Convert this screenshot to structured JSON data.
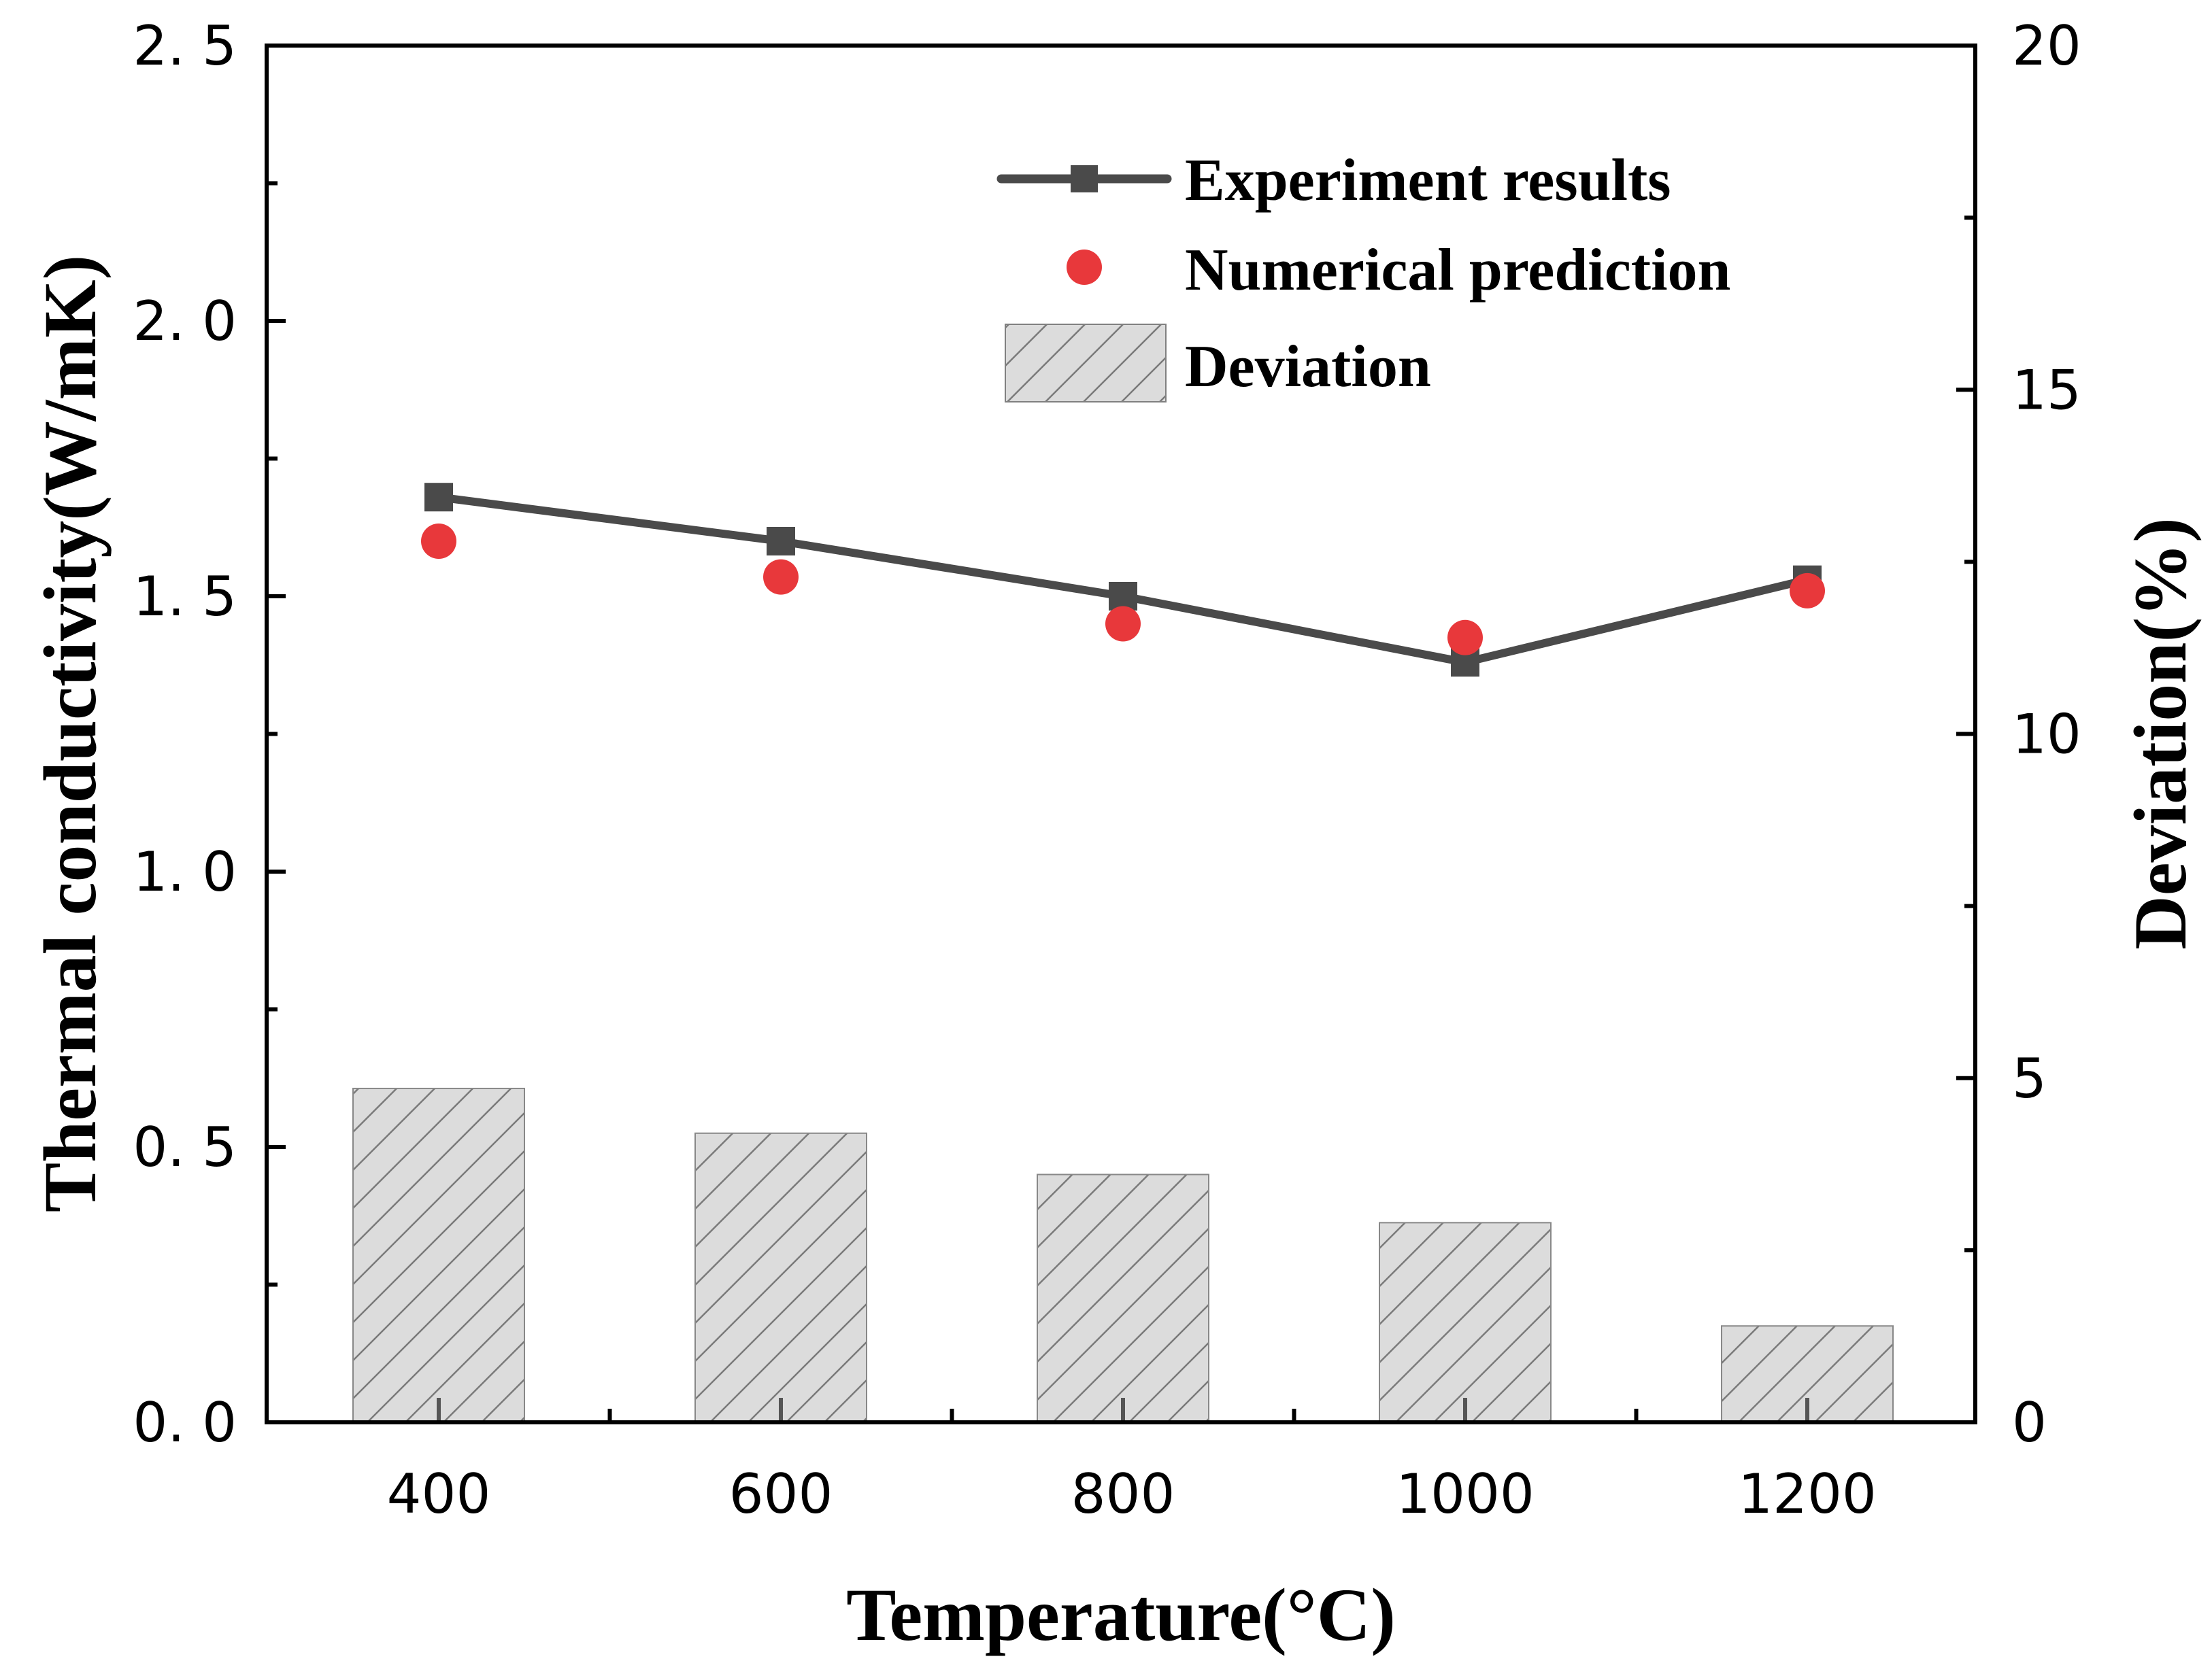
{
  "chart_data": {
    "type": "line+bar",
    "x": [
      400,
      600,
      800,
      1000,
      1200
    ],
    "xlabel": "Temperature(°C)",
    "ylabel": "Thermal conductivity(W/mK)",
    "y2label": "Deviation(%)",
    "ylim": [
      0,
      2.5
    ],
    "y2lim": [
      0,
      20
    ],
    "xticks": [
      "400",
      "600",
      "800",
      "1000",
      "1200"
    ],
    "yticks": [
      "0. 0",
      "0. 5",
      "1. 0",
      "1. 5",
      "2. 0",
      "2. 5"
    ],
    "y2ticks": [
      "0",
      "5",
      "10",
      "15",
      "20"
    ],
    "series": [
      {
        "name": "Experiment results",
        "type": "line",
        "axis": "left",
        "color": "#4a4a4a",
        "values": [
          1.68,
          1.6,
          1.5,
          1.38,
          1.53
        ]
      },
      {
        "name": "Numerical prediction",
        "type": "scatter",
        "axis": "left",
        "color": "#e8383b",
        "values": [
          1.6,
          1.535,
          1.45,
          1.425,
          1.51
        ]
      },
      {
        "name": "Deviation",
        "type": "bar",
        "axis": "right",
        "color": "#d9d9d9",
        "values": [
          4.85,
          4.2,
          3.6,
          2.9,
          1.4
        ]
      }
    ],
    "legend_position": "top-right"
  }
}
